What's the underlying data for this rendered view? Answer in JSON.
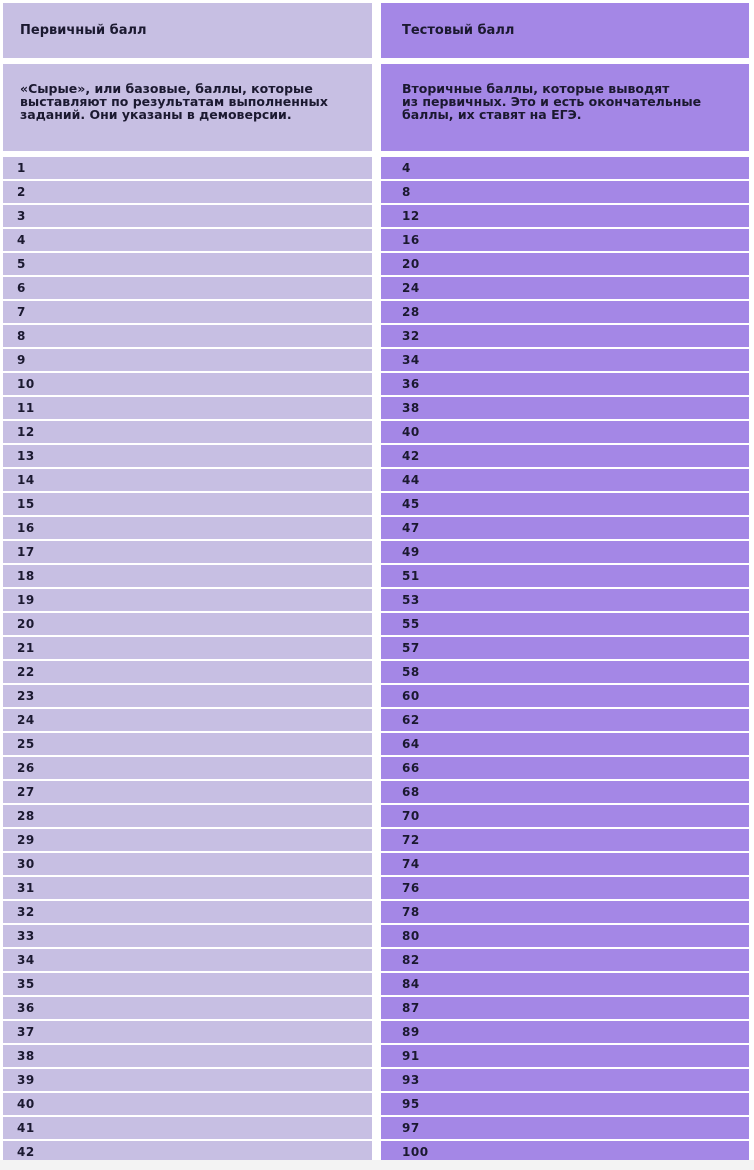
{
  "header": {
    "primary_label": "Первичный балл",
    "test_label": "Тестовый балл"
  },
  "description": {
    "primary_lines": [
      "«Сырые», или базовые, баллы, которые",
      "выставляют по результатам выполненных",
      "заданий. Они указаны в демоверсии."
    ],
    "test_lines": [
      "Вторичные баллы, которые выводят",
      "из первичных. Это и есть окончательные",
      "баллы, их ставят на ЕГЭ."
    ]
  },
  "rows": [
    {
      "primary": "1",
      "test": "4"
    },
    {
      "primary": "2",
      "test": "8"
    },
    {
      "primary": "3",
      "test": "12"
    },
    {
      "primary": "4",
      "test": "16"
    },
    {
      "primary": "5",
      "test": "20"
    },
    {
      "primary": "6",
      "test": "24"
    },
    {
      "primary": "7",
      "test": "28"
    },
    {
      "primary": "8",
      "test": "32"
    },
    {
      "primary": "9",
      "test": "34"
    },
    {
      "primary": "10",
      "test": "36"
    },
    {
      "primary": "11",
      "test": "38"
    },
    {
      "primary": "12",
      "test": "40"
    },
    {
      "primary": "13",
      "test": "42"
    },
    {
      "primary": "14",
      "test": "44"
    },
    {
      "primary": "15",
      "test": "45"
    },
    {
      "primary": "16",
      "test": "47"
    },
    {
      "primary": "17",
      "test": "49"
    },
    {
      "primary": "18",
      "test": "51"
    },
    {
      "primary": "19",
      "test": "53"
    },
    {
      "primary": "20",
      "test": "55"
    },
    {
      "primary": "21",
      "test": "57"
    },
    {
      "primary": "22",
      "test": "58"
    },
    {
      "primary": "23",
      "test": "60"
    },
    {
      "primary": "24",
      "test": "62"
    },
    {
      "primary": "25",
      "test": "64"
    },
    {
      "primary": "26",
      "test": "66"
    },
    {
      "primary": "27",
      "test": "68"
    },
    {
      "primary": "28",
      "test": "70"
    },
    {
      "primary": "29",
      "test": "72"
    },
    {
      "primary": "30",
      "test": "74"
    },
    {
      "primary": "31",
      "test": "76"
    },
    {
      "primary": "32",
      "test": "78"
    },
    {
      "primary": "33",
      "test": "80"
    },
    {
      "primary": "34",
      "test": "82"
    },
    {
      "primary": "35",
      "test": "84"
    },
    {
      "primary": "36",
      "test": "87"
    },
    {
      "primary": "37",
      "test": "89"
    },
    {
      "primary": "38",
      "test": "91"
    },
    {
      "primary": "39",
      "test": "93"
    },
    {
      "primary": "40",
      "test": "95"
    },
    {
      "primary": "41",
      "test": "97"
    },
    {
      "primary": "42",
      "test": "100"
    }
  ],
  "colors": {
    "primary_column": "#c7bfe3",
    "test_column": "#a487e6",
    "text": "#1b1930"
  }
}
